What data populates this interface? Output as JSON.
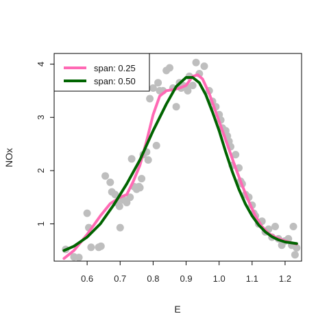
{
  "chart_data": {
    "type": "scatter",
    "xlabel": "E",
    "ylabel": "NOx",
    "xlim": [
      0.5,
      1.25
    ],
    "ylim": [
      0.3,
      4.2
    ],
    "xticks": [
      0.6,
      0.7,
      0.8,
      0.9,
      1.0,
      1.1,
      1.2
    ],
    "xtick_labels": [
      "0.6",
      "0.7",
      "0.8",
      "0.9",
      "1.0",
      "1.1",
      "1.2"
    ],
    "yticks": [
      1,
      2,
      3,
      4
    ],
    "ytick_labels": [
      "1",
      "2",
      "3",
      "4"
    ],
    "grid": false,
    "legend_position": "top-left",
    "points": {
      "color": "#bebebe",
      "x": [
        0.535,
        0.56,
        0.575,
        0.6,
        0.605,
        0.612,
        0.635,
        0.642,
        0.655,
        0.67,
        0.675,
        0.685,
        0.69,
        0.698,
        0.7,
        0.71,
        0.72,
        0.73,
        0.735,
        0.742,
        0.75,
        0.757,
        0.76,
        0.765,
        0.77,
        0.78,
        0.785,
        0.79,
        0.8,
        0.81,
        0.815,
        0.82,
        0.83,
        0.84,
        0.85,
        0.86,
        0.87,
        0.88,
        0.885,
        0.89,
        0.9,
        0.905,
        0.91,
        0.92,
        0.93,
        0.94,
        0.955,
        0.97,
        0.98,
        0.99,
        1.0,
        1.005,
        1.01,
        1.02,
        1.025,
        1.03,
        1.035,
        1.04,
        1.05,
        1.06,
        1.065,
        1.07,
        1.08,
        1.09,
        1.1,
        1.105,
        1.11,
        1.12,
        1.13,
        1.14,
        1.15,
        1.16,
        1.17,
        1.18,
        1.19,
        1.2,
        1.21,
        1.22,
        1.225,
        1.23,
        1.235
      ],
      "y": [
        0.52,
        0.38,
        0.37,
        1.2,
        0.93,
        0.56,
        0.56,
        0.58,
        1.9,
        1.78,
        1.6,
        1.55,
        1.4,
        1.33,
        0.93,
        1.45,
        1.4,
        1.5,
        2.22,
        1.7,
        1.65,
        1.7,
        1.68,
        1.85,
        2.3,
        2.35,
        2.2,
        3.35,
        3.55,
        2.47,
        3.65,
        3.5,
        3.5,
        3.88,
        3.93,
        3.55,
        3.2,
        3.65,
        3.55,
        3.6,
        3.58,
        3.5,
        3.77,
        3.6,
        4.03,
        3.82,
        3.96,
        3.5,
        3.3,
        3.2,
        3.05,
        2.95,
        2.8,
        2.75,
        2.65,
        2.55,
        2.45,
        2.1,
        2.3,
        2.05,
        1.8,
        1.75,
        1.55,
        1.5,
        1.35,
        1.2,
        1.15,
        1.0,
        1.05,
        0.85,
        0.9,
        0.75,
        0.95,
        0.72,
        0.6,
        0.68,
        0.72,
        0.6,
        0.95,
        0.42,
        0.55
      ]
    },
    "series": [
      {
        "name": "span: 0.25",
        "color": "#ff69b4",
        "x": [
          0.53,
          0.56,
          0.6,
          0.64,
          0.67,
          0.7,
          0.72,
          0.74,
          0.76,
          0.78,
          0.8,
          0.82,
          0.84,
          0.86,
          0.88,
          0.9,
          0.92,
          0.935,
          0.95,
          0.97,
          0.99,
          1.01,
          1.03,
          1.05,
          1.07,
          1.09,
          1.11,
          1.13,
          1.15,
          1.17,
          1.19,
          1.21,
          1.235
        ],
        "y": [
          0.35,
          0.5,
          0.8,
          1.15,
          1.38,
          1.5,
          1.55,
          1.8,
          2.1,
          2.55,
          3.05,
          3.4,
          3.5,
          3.52,
          3.55,
          3.6,
          3.77,
          3.8,
          3.72,
          3.45,
          3.1,
          2.75,
          2.4,
          2.05,
          1.72,
          1.42,
          1.15,
          0.95,
          0.82,
          0.75,
          0.7,
          0.66,
          0.62
        ]
      },
      {
        "name": "span: 0.50",
        "color": "#006400",
        "x": [
          0.53,
          0.56,
          0.6,
          0.64,
          0.68,
          0.72,
          0.76,
          0.8,
          0.84,
          0.87,
          0.9,
          0.92,
          0.94,
          0.96,
          0.98,
          1.0,
          1.02,
          1.04,
          1.06,
          1.08,
          1.1,
          1.12,
          1.14,
          1.16,
          1.18,
          1.2,
          1.235
        ],
        "y": [
          0.5,
          0.58,
          0.75,
          1.0,
          1.35,
          1.75,
          2.2,
          2.75,
          3.25,
          3.58,
          3.75,
          3.75,
          3.65,
          3.42,
          3.1,
          2.75,
          2.35,
          1.98,
          1.65,
          1.37,
          1.15,
          0.98,
          0.85,
          0.76,
          0.7,
          0.66,
          0.63
        ]
      }
    ]
  }
}
